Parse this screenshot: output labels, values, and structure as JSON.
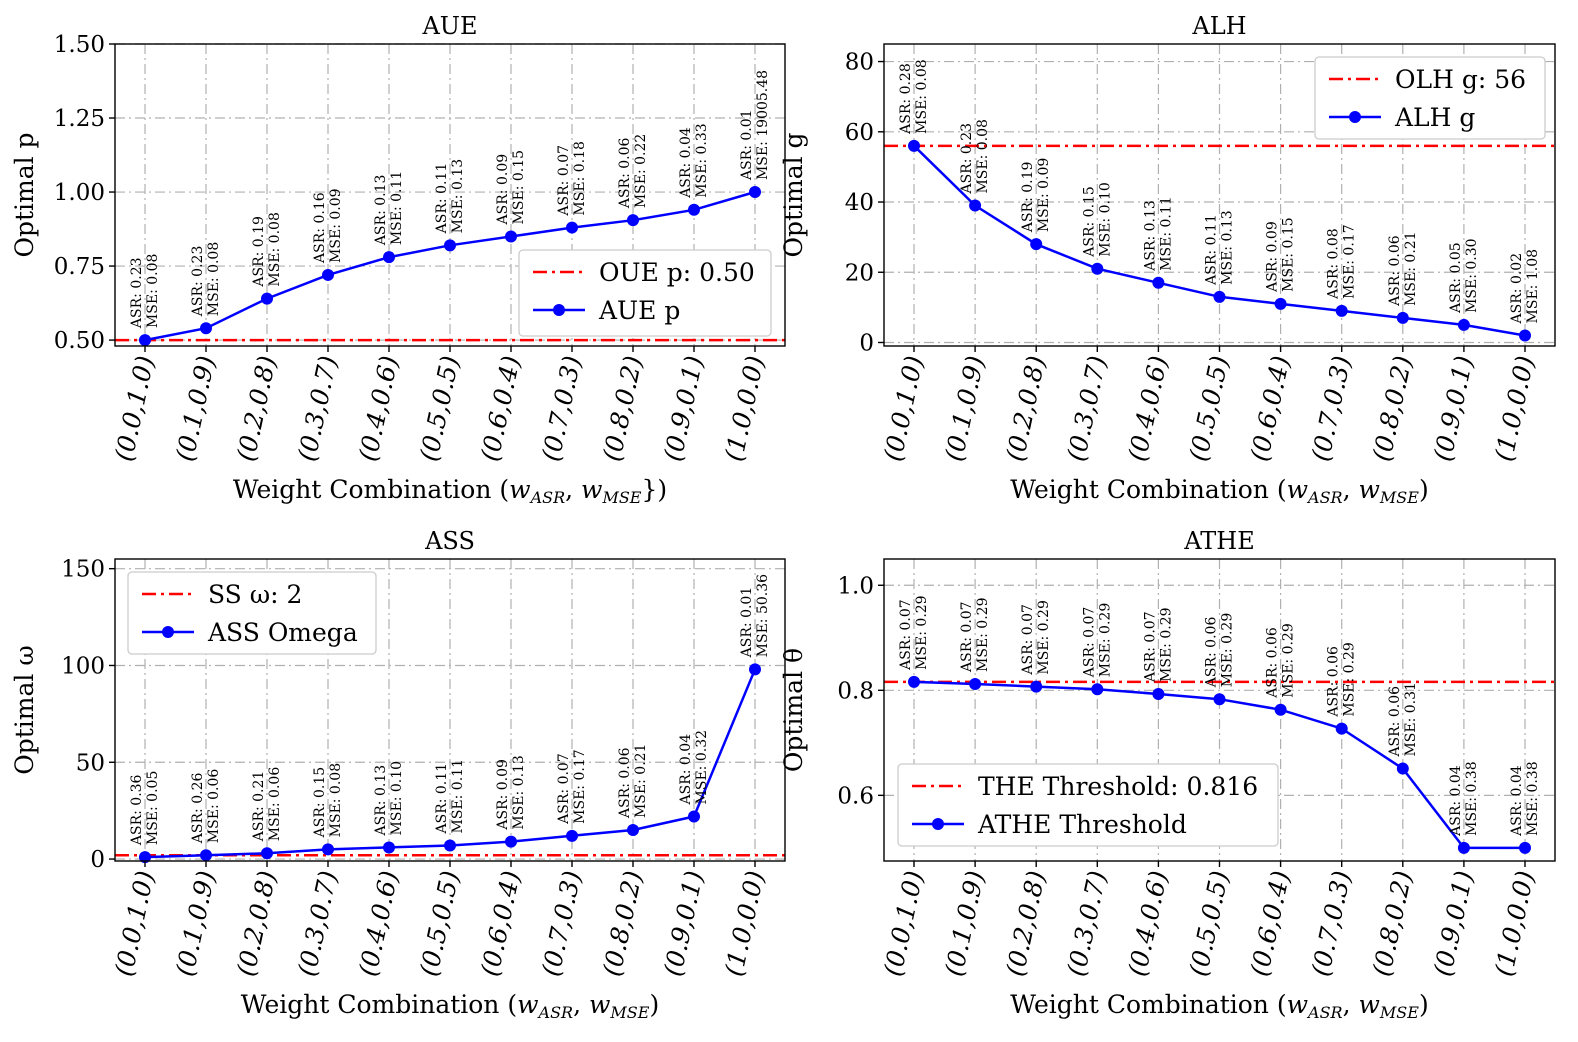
{
  "chart_data": [
    {
      "type": "line",
      "title": "AUE",
      "ylabel": "Optimal p",
      "xlabel": "Weight Combination (w_ASR, w_MSE})",
      "xlabel_parts": [
        "Weight Combination (",
        "w",
        "ASR",
        ", ",
        "w",
        "MSE",
        "})"
      ],
      "categories": [
        "(0.0,1.0)",
        "(0.1,0.9)",
        "(0.2,0.8)",
        "(0.3,0.7)",
        "(0.4,0.6)",
        "(0.5,0.5)",
        "(0.6,0.4)",
        "(0.7,0.3)",
        "(0.8,0.2)",
        "(0.9,0.1)",
        "(1.0,0.0)"
      ],
      "series": [
        {
          "name": "AUE p",
          "values": [
            0.5,
            0.54,
            0.64,
            0.72,
            0.78,
            0.82,
            0.85,
            0.88,
            0.905,
            0.94,
            1.0
          ]
        }
      ],
      "baseline": {
        "name": "OUE p: 0.50",
        "value": 0.5
      },
      "annotations_asr": [
        "ASR: 0.23",
        "ASR: 0.23",
        "ASR: 0.19",
        "ASR: 0.16",
        "ASR: 0.13",
        "ASR: 0.11",
        "ASR: 0.09",
        "ASR: 0.07",
        "ASR: 0.06",
        "ASR: 0.04",
        "ASR: 0.01"
      ],
      "annotations_mse": [
        "MSE: 0.08",
        "MSE: 0.08",
        "MSE: 0.08",
        "MSE: 0.09",
        "MSE: 0.11",
        "MSE: 0.13",
        "MSE: 0.15",
        "MSE: 0.18",
        "MSE: 0.22",
        "MSE: 0.33",
        "MSE: 19005.48"
      ],
      "yticks": [
        0.5,
        0.75,
        1.0,
        1.25,
        1.5
      ],
      "ytick_labels": [
        "0.50",
        "0.75",
        "1.00",
        "1.25",
        "1.50"
      ],
      "ylim": [
        0.48,
        1.5
      ],
      "legend_position": "lower-right",
      "grid": true
    },
    {
      "type": "line",
      "title": "ALH",
      "ylabel": "Optimal g",
      "xlabel": "Weight Combination (w_ASR, w_MSE)",
      "xlabel_parts": [
        "Weight Combination (",
        "w",
        "ASR",
        ", ",
        "w",
        "MSE",
        ")"
      ],
      "categories": [
        "(0.0,1.0)",
        "(0.1,0.9)",
        "(0.2,0.8)",
        "(0.3,0.7)",
        "(0.4,0.6)",
        "(0.5,0.5)",
        "(0.6,0.4)",
        "(0.7,0.3)",
        "(0.8,0.2)",
        "(0.9,0.1)",
        "(1.0,0.0)"
      ],
      "series": [
        {
          "name": "ALH g",
          "values": [
            56,
            39,
            28,
            21,
            17,
            13,
            11,
            9,
            7,
            5,
            2
          ]
        }
      ],
      "baseline": {
        "name": "OLH g: 56",
        "value": 56
      },
      "annotations_asr": [
        "ASR: 0.28",
        "ASR: 0.23",
        "ASR: 0.19",
        "ASR: 0.15",
        "ASR: 0.13",
        "ASR: 0.11",
        "ASR: 0.09",
        "ASR: 0.08",
        "ASR: 0.06",
        "ASR: 0.05",
        "ASR: 0.02"
      ],
      "annotations_mse": [
        "MSE: 0.08",
        "MSE: 0.08",
        "MSE: 0.09",
        "MSE: 0.10",
        "MSE: 0.11",
        "MSE: 0.13",
        "MSE: 0.15",
        "MSE: 0.17",
        "MSE: 0.21",
        "MSE: 0.30",
        "MSE: 1.08"
      ],
      "yticks": [
        0,
        20,
        40,
        60,
        80
      ],
      "ytick_labels": [
        "0",
        "20",
        "40",
        "60",
        "80"
      ],
      "ylim": [
        -1,
        85
      ],
      "legend_position": "upper-right",
      "grid": true
    },
    {
      "type": "line",
      "title": "ASS",
      "ylabel": "Optimal ω",
      "xlabel": "Weight Combination (w_ASR, w_MSE)",
      "xlabel_parts": [
        "Weight Combination (",
        "w",
        "ASR",
        ", ",
        "w",
        "MSE",
        ")"
      ],
      "categories": [
        "(0.0,1.0)",
        "(0.1,0.9)",
        "(0.2,0.8)",
        "(0.3,0.7)",
        "(0.4,0.6)",
        "(0.5,0.5)",
        "(0.6,0.4)",
        "(0.7,0.3)",
        "(0.8,0.2)",
        "(0.9,0.1)",
        "(1.0,0.0)"
      ],
      "series": [
        {
          "name": "ASS Omega",
          "values": [
            1,
            2,
            3,
            5,
            6,
            7,
            9,
            12,
            15,
            22,
            98
          ]
        }
      ],
      "baseline": {
        "name": "SS ω: 2",
        "value": 2
      },
      "annotations_asr": [
        "ASR: 0.36",
        "ASR: 0.26",
        "ASR: 0.21",
        "ASR: 0.15",
        "ASR: 0.13",
        "ASR: 0.11",
        "ASR: 0.09",
        "ASR: 0.07",
        "ASR: 0.06",
        "ASR: 0.04",
        "ASR: 0.01"
      ],
      "annotations_mse": [
        "MSE: 0.05",
        "MSE: 0.06",
        "MSE: 0.06",
        "MSE: 0.08",
        "MSE: 0.10",
        "MSE: 0.11",
        "MSE: 0.13",
        "MSE: 0.17",
        "MSE: 0.21",
        "MSE: 0.32",
        "MSE: 50.36"
      ],
      "yticks": [
        0,
        50,
        100,
        150
      ],
      "ytick_labels": [
        "0",
        "50",
        "100",
        "150"
      ],
      "ylim": [
        -1,
        155
      ],
      "legend_position": "upper-left",
      "grid": true
    },
    {
      "type": "line",
      "title": "ATHE",
      "ylabel": "Optimal θ",
      "xlabel": "Weight Combination (w_ASR, w_MSE)",
      "xlabel_parts": [
        "Weight Combination (",
        "w",
        "ASR",
        ", ",
        "w",
        "MSE",
        ")"
      ],
      "categories": [
        "(0.0,1.0)",
        "(0.1,0.9)",
        "(0.2,0.8)",
        "(0.3,0.7)",
        "(0.4,0.6)",
        "(0.5,0.5)",
        "(0.6,0.4)",
        "(0.7,0.3)",
        "(0.8,0.2)",
        "(0.9,0.1)",
        "(1.0,0.0)"
      ],
      "series": [
        {
          "name": "ATHE Threshold",
          "values": [
            0.816,
            0.812,
            0.807,
            0.802,
            0.793,
            0.783,
            0.763,
            0.727,
            0.651,
            0.5,
            0.5
          ]
        }
      ],
      "baseline": {
        "name": "THE Threshold: 0.816",
        "value": 0.816
      },
      "annotations_asr": [
        "ASR: 0.07",
        "ASR: 0.07",
        "ASR: 0.07",
        "ASR: 0.07",
        "ASR: 0.07",
        "ASR: 0.06",
        "ASR: 0.06",
        "ASR: 0.06",
        "ASR: 0.06",
        "ASR: 0.04",
        "ASR: 0.04"
      ],
      "annotations_mse": [
        "MSE: 0.29",
        "MSE: 0.29",
        "MSE: 0.29",
        "MSE: 0.29",
        "MSE: 0.29",
        "MSE: 0.29",
        "MSE: 0.29",
        "MSE: 0.29",
        "MSE: 0.31",
        "MSE: 0.38",
        "MSE: 0.38"
      ],
      "yticks": [
        0.6,
        0.8,
        1.0
      ],
      "ytick_labels": [
        "0.6",
        "0.8",
        "1.0"
      ],
      "ylim": [
        0.475,
        1.05
      ],
      "legend_position": "lower-left",
      "grid": true
    }
  ]
}
